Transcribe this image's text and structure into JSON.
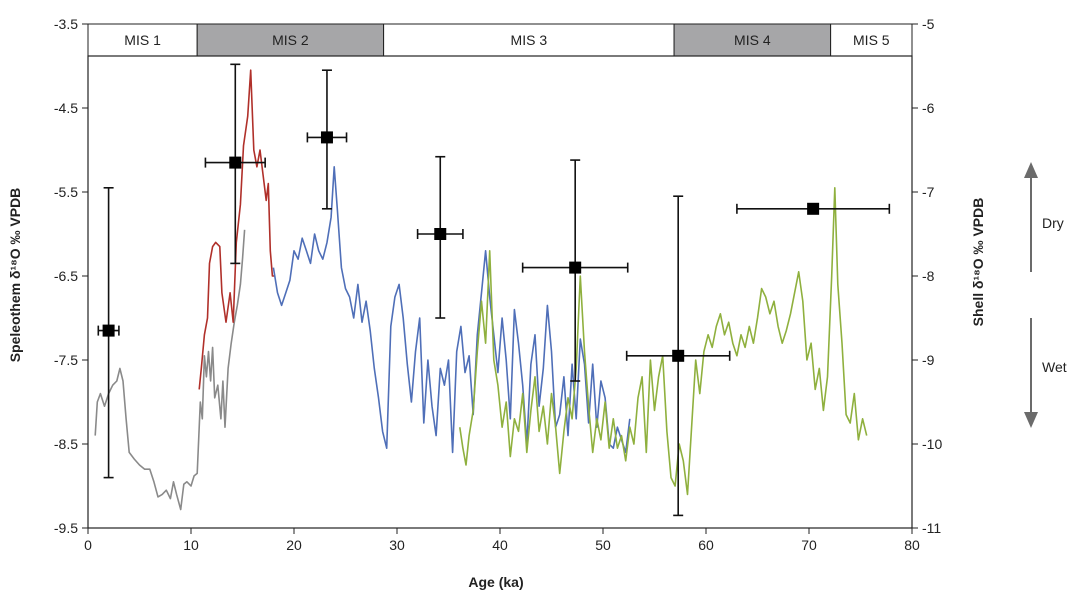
{
  "chart_data": {
    "type": "line",
    "xlabel": "Age (ka)",
    "ylabel_left": "Speleothem δ¹⁸O ‰ VPDB",
    "ylabel_right": "Shell δ¹⁸O ‰ VPDB",
    "xlim": [
      0,
      80
    ],
    "ylim_left": [
      -9.5,
      -3.5
    ],
    "ylim_right": [
      -11,
      -5
    ],
    "x_ticks": [
      "0",
      "10",
      "20",
      "30",
      "40",
      "50",
      "60",
      "70",
      "80"
    ],
    "y_ticks_left": [
      "-3.5",
      "-4.5",
      "-5.5",
      "-6.5",
      "-7.5",
      "-8.5",
      "-9.5"
    ],
    "y_ticks_right": [
      "-5",
      "-6",
      "-7",
      "-8",
      "-9",
      "-10",
      "-11"
    ],
    "grid": false,
    "stages": [
      {
        "label": "MIS 1",
        "start": 0,
        "end": 10.6,
        "color": "#ffffff"
      },
      {
        "label": "MIS 2",
        "start": 10.6,
        "end": 28.7,
        "color": "#a6a6a8"
      },
      {
        "label": "MIS 3",
        "start": 28.7,
        "end": 56.9,
        "color": "#ffffff"
      },
      {
        "label": "MIS 4",
        "start": 56.9,
        "end": 72.1,
        "color": "#a6a6a8"
      },
      {
        "label": "MIS 5",
        "start": 72.1,
        "end": 80,
        "color": "#ffffff"
      }
    ],
    "side_labels": {
      "dry": "Dry",
      "wet": "Wet"
    },
    "series": [
      {
        "color": "#8a8a8a",
        "axis": "left",
        "points": [
          [
            0.7,
            -8.4
          ],
          [
            0.9,
            -8.0
          ],
          [
            1.2,
            -7.9
          ],
          [
            1.6,
            -8.05
          ],
          [
            2.0,
            -7.9
          ],
          [
            2.4,
            -7.8
          ],
          [
            2.8,
            -7.75
          ],
          [
            3.1,
            -7.6
          ],
          [
            3.4,
            -7.75
          ],
          [
            3.7,
            -8.2
          ],
          [
            4.0,
            -8.6
          ],
          [
            4.5,
            -8.68
          ],
          [
            5.0,
            -8.75
          ],
          [
            5.5,
            -8.8
          ],
          [
            6.0,
            -8.8
          ],
          [
            6.4,
            -8.95
          ],
          [
            6.8,
            -9.13
          ],
          [
            7.2,
            -9.1
          ],
          [
            7.6,
            -9.05
          ],
          [
            8.0,
            -9.15
          ],
          [
            8.3,
            -8.95
          ],
          [
            8.6,
            -9.1
          ],
          [
            9.0,
            -9.28
          ],
          [
            9.3,
            -8.98
          ],
          [
            9.6,
            -8.95
          ],
          [
            10.0,
            -9.0
          ],
          [
            10.3,
            -8.88
          ],
          [
            10.6,
            -8.85
          ],
          [
            10.9,
            -8.0
          ],
          [
            11.1,
            -8.2
          ],
          [
            11.3,
            -7.45
          ],
          [
            11.5,
            -7.7
          ],
          [
            11.7,
            -7.4
          ],
          [
            11.9,
            -7.75
          ],
          [
            12.1,
            -7.35
          ],
          [
            12.3,
            -7.95
          ],
          [
            12.6,
            -7.8
          ],
          [
            12.9,
            -8.2
          ],
          [
            13.1,
            -7.75
          ],
          [
            13.3,
            -8.3
          ],
          [
            13.6,
            -7.6
          ],
          [
            13.9,
            -7.3
          ],
          [
            14.2,
            -7.05
          ],
          [
            14.5,
            -6.85
          ],
          [
            14.8,
            -6.6
          ],
          [
            15.0,
            -6.3
          ],
          [
            15.2,
            -5.95
          ]
        ]
      },
      {
        "color": "#b0302a",
        "axis": "left",
        "points": [
          [
            10.8,
            -7.85
          ],
          [
            11.0,
            -7.6
          ],
          [
            11.3,
            -7.2
          ],
          [
            11.6,
            -7.0
          ],
          [
            11.8,
            -6.35
          ],
          [
            12.1,
            -6.15
          ],
          [
            12.4,
            -6.1
          ],
          [
            12.8,
            -6.15
          ],
          [
            13.0,
            -6.7
          ],
          [
            13.4,
            -7.05
          ],
          [
            13.8,
            -6.7
          ],
          [
            14.1,
            -7.05
          ],
          [
            14.4,
            -6.1
          ],
          [
            14.8,
            -5.65
          ],
          [
            15.1,
            -4.95
          ],
          [
            15.5,
            -4.6
          ],
          [
            15.8,
            -4.05
          ],
          [
            16.1,
            -5.0
          ],
          [
            16.4,
            -5.2
          ],
          [
            16.7,
            -5.0
          ],
          [
            17.0,
            -5.3
          ],
          [
            17.3,
            -5.6
          ],
          [
            17.5,
            -5.4
          ],
          [
            17.7,
            -6.2
          ],
          [
            17.9,
            -6.5
          ],
          [
            18.1,
            -6.5
          ]
        ]
      },
      {
        "color": "#4f6fb8",
        "axis": "left",
        "points": [
          [
            18.0,
            -6.4
          ],
          [
            18.4,
            -6.7
          ],
          [
            18.8,
            -6.85
          ],
          [
            19.2,
            -6.7
          ],
          [
            19.6,
            -6.55
          ],
          [
            20.0,
            -6.2
          ],
          [
            20.4,
            -6.3
          ],
          [
            20.8,
            -6.05
          ],
          [
            21.2,
            -6.2
          ],
          [
            21.6,
            -6.35
          ],
          [
            22.0,
            -6.0
          ],
          [
            22.4,
            -6.2
          ],
          [
            22.8,
            -6.3
          ],
          [
            23.2,
            -6.1
          ],
          [
            23.6,
            -5.8
          ],
          [
            23.9,
            -5.2
          ],
          [
            24.2,
            -5.7
          ],
          [
            24.6,
            -6.4
          ],
          [
            25.0,
            -6.65
          ],
          [
            25.4,
            -6.75
          ],
          [
            25.8,
            -7.0
          ],
          [
            26.2,
            -6.6
          ],
          [
            26.6,
            -7.05
          ],
          [
            27.0,
            -6.8
          ],
          [
            27.4,
            -7.15
          ],
          [
            27.8,
            -7.6
          ],
          [
            28.2,
            -7.95
          ],
          [
            28.6,
            -8.35
          ],
          [
            29.0,
            -8.55
          ],
          [
            29.4,
            -7.1
          ],
          [
            29.8,
            -6.75
          ],
          [
            30.2,
            -6.6
          ],
          [
            30.6,
            -7.0
          ],
          [
            31.0,
            -7.55
          ],
          [
            31.4,
            -8.0
          ],
          [
            31.8,
            -7.4
          ],
          [
            32.2,
            -7.0
          ],
          [
            32.6,
            -8.25
          ],
          [
            33.0,
            -7.5
          ],
          [
            33.4,
            -8.05
          ],
          [
            33.8,
            -8.4
          ],
          [
            34.2,
            -7.6
          ],
          [
            34.6,
            -7.8
          ],
          [
            35.0,
            -7.5
          ],
          [
            35.4,
            -8.6
          ],
          [
            35.8,
            -7.4
          ],
          [
            36.2,
            -7.1
          ],
          [
            36.6,
            -7.65
          ],
          [
            37.0,
            -7.45
          ],
          [
            37.4,
            -8.15
          ],
          [
            37.8,
            -7.2
          ],
          [
            38.2,
            -6.7
          ],
          [
            38.6,
            -6.2
          ],
          [
            39.0,
            -6.75
          ],
          [
            39.4,
            -7.2
          ],
          [
            39.8,
            -7.65
          ],
          [
            40.2,
            -7.0
          ],
          [
            40.6,
            -7.5
          ],
          [
            41.0,
            -8.2
          ],
          [
            41.4,
            -6.9
          ],
          [
            41.8,
            -7.3
          ],
          [
            42.2,
            -7.8
          ],
          [
            42.6,
            -8.5
          ],
          [
            43.0,
            -7.55
          ],
          [
            43.4,
            -7.2
          ],
          [
            43.8,
            -8.05
          ],
          [
            44.2,
            -7.6
          ],
          [
            44.6,
            -6.85
          ],
          [
            45.0,
            -7.4
          ],
          [
            45.4,
            -8.3
          ],
          [
            45.8,
            -8.15
          ],
          [
            46.2,
            -7.7
          ],
          [
            46.6,
            -8.4
          ],
          [
            47.0,
            -7.55
          ],
          [
            47.4,
            -8.2
          ],
          [
            47.8,
            -7.25
          ],
          [
            48.2,
            -7.55
          ],
          [
            48.6,
            -8.25
          ],
          [
            49.0,
            -7.55
          ],
          [
            49.4,
            -8.3
          ],
          [
            49.8,
            -7.75
          ],
          [
            50.2,
            -7.95
          ],
          [
            50.6,
            -8.5
          ],
          [
            51.0,
            -8.55
          ],
          [
            51.4,
            -8.3
          ],
          [
            51.8,
            -8.45
          ],
          [
            52.2,
            -8.6
          ],
          [
            52.6,
            -8.2
          ]
        ]
      },
      {
        "color": "#8fb03e",
        "axis": "left",
        "points": [
          [
            36.1,
            -8.3
          ],
          [
            36.4,
            -8.55
          ],
          [
            36.7,
            -8.75
          ],
          [
            37.0,
            -8.4
          ],
          [
            37.4,
            -8.1
          ],
          [
            37.8,
            -7.4
          ],
          [
            38.2,
            -6.8
          ],
          [
            38.6,
            -7.3
          ],
          [
            39.0,
            -6.2
          ],
          [
            39.4,
            -7.5
          ],
          [
            39.8,
            -7.8
          ],
          [
            40.2,
            -8.3
          ],
          [
            40.6,
            -8.0
          ],
          [
            41.0,
            -8.65
          ],
          [
            41.4,
            -8.2
          ],
          [
            41.8,
            -8.35
          ],
          [
            42.2,
            -7.9
          ],
          [
            42.6,
            -8.6
          ],
          [
            43.0,
            -8.1
          ],
          [
            43.4,
            -7.7
          ],
          [
            43.8,
            -8.35
          ],
          [
            44.2,
            -8.05
          ],
          [
            44.6,
            -8.5
          ],
          [
            45.0,
            -7.9
          ],
          [
            45.4,
            -8.3
          ],
          [
            45.8,
            -8.85
          ],
          [
            46.2,
            -8.35
          ],
          [
            46.6,
            -7.95
          ],
          [
            47.0,
            -8.2
          ],
          [
            47.4,
            -7.6
          ],
          [
            47.8,
            -6.5
          ],
          [
            48.2,
            -7.4
          ],
          [
            48.6,
            -8.05
          ],
          [
            49.0,
            -8.6
          ],
          [
            49.4,
            -8.2
          ],
          [
            49.8,
            -8.45
          ],
          [
            50.2,
            -8.0
          ],
          [
            50.6,
            -8.55
          ],
          [
            51.0,
            -8.2
          ],
          [
            51.4,
            -8.55
          ],
          [
            51.8,
            -8.4
          ],
          [
            52.2,
            -8.7
          ],
          [
            52.6,
            -8.3
          ],
          [
            53.0,
            -8.5
          ],
          [
            53.4,
            -7.95
          ],
          [
            53.8,
            -7.7
          ],
          [
            54.2,
            -8.6
          ],
          [
            54.6,
            -7.5
          ],
          [
            55.0,
            -8.1
          ],
          [
            55.4,
            -7.7
          ],
          [
            55.8,
            -7.45
          ],
          [
            56.2,
            -8.35
          ],
          [
            56.6,
            -8.9
          ],
          [
            57.0,
            -9.0
          ],
          [
            57.4,
            -8.5
          ],
          [
            57.8,
            -8.7
          ],
          [
            58.2,
            -9.1
          ],
          [
            58.6,
            -8.3
          ],
          [
            59.0,
            -7.5
          ],
          [
            59.4,
            -7.9
          ],
          [
            59.8,
            -7.4
          ],
          [
            60.2,
            -7.2
          ],
          [
            60.6,
            -7.35
          ],
          [
            61.0,
            -7.1
          ],
          [
            61.4,
            -6.95
          ],
          [
            61.8,
            -7.2
          ],
          [
            62.2,
            -7.05
          ],
          [
            62.6,
            -7.3
          ],
          [
            63.0,
            -7.45
          ],
          [
            63.4,
            -7.2
          ],
          [
            63.8,
            -7.35
          ],
          [
            64.2,
            -7.1
          ],
          [
            64.6,
            -7.3
          ],
          [
            65.0,
            -7.0
          ],
          [
            65.4,
            -6.65
          ],
          [
            65.8,
            -6.75
          ],
          [
            66.2,
            -6.95
          ],
          [
            66.6,
            -6.8
          ],
          [
            67.0,
            -7.1
          ],
          [
            67.4,
            -7.3
          ],
          [
            67.8,
            -7.15
          ],
          [
            68.2,
            -6.95
          ],
          [
            68.6,
            -6.7
          ],
          [
            69.0,
            -6.45
          ],
          [
            69.4,
            -6.8
          ],
          [
            69.8,
            -7.5
          ],
          [
            70.2,
            -7.3
          ],
          [
            70.6,
            -7.85
          ],
          [
            71.0,
            -7.6
          ],
          [
            71.4,
            -8.1
          ],
          [
            71.8,
            -7.7
          ],
          [
            72.2,
            -6.5
          ],
          [
            72.5,
            -5.45
          ],
          [
            72.8,
            -6.6
          ],
          [
            73.2,
            -7.3
          ],
          [
            73.6,
            -8.15
          ],
          [
            74.0,
            -8.25
          ],
          [
            74.4,
            -7.9
          ],
          [
            74.8,
            -8.45
          ],
          [
            75.2,
            -8.2
          ],
          [
            75.6,
            -8.4
          ]
        ]
      }
    ],
    "shell_points": {
      "axis": "right",
      "x": [
        2.0,
        14.3,
        23.2,
        34.2,
        47.3,
        57.3,
        70.4
      ],
      "y": [
        -8.65,
        -6.65,
        -6.35,
        -7.5,
        -7.9,
        -8.95,
        -7.2
      ],
      "y_err_low": [
        -10.4,
        -7.85,
        -7.2,
        -8.5,
        -9.25,
        -10.85,
        -7.2
      ],
      "y_err_high": [
        -6.95,
        -5.48,
        -5.55,
        -6.58,
        -6.62,
        -7.05,
        -7.2
      ],
      "x_err": [
        1.0,
        2.9,
        1.9,
        2.2,
        5.1,
        5.0,
        7.4
      ]
    }
  }
}
